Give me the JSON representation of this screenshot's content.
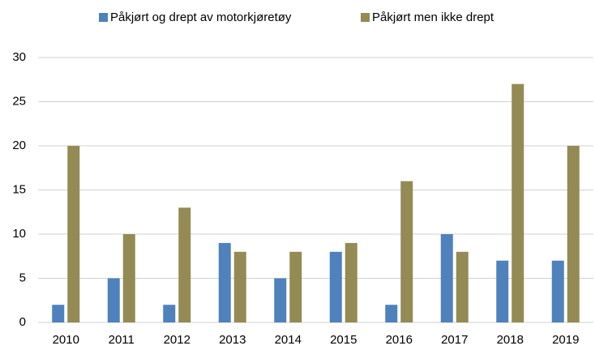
{
  "chart_data": {
    "type": "bar",
    "categories": [
      "2010",
      "2011",
      "2012",
      "2013",
      "2014",
      "2015",
      "2016",
      "2017",
      "2018",
      "2019"
    ],
    "series": [
      {
        "name": "Påkjørt og drept av motorkjøretøy",
        "color": "#4f81bd",
        "values": [
          2,
          5,
          2,
          9,
          5,
          8,
          2,
          10,
          7,
          7
        ]
      },
      {
        "name": "Påkjørt men ikke drept",
        "color": "#948a54",
        "values": [
          20,
          10,
          13,
          8,
          8,
          9,
          16,
          8,
          27,
          20
        ]
      }
    ],
    "ylim": [
      0,
      30
    ],
    "yticks": [
      0,
      5,
      10,
      15,
      20,
      25,
      30
    ],
    "grid": true,
    "legend": "top"
  }
}
